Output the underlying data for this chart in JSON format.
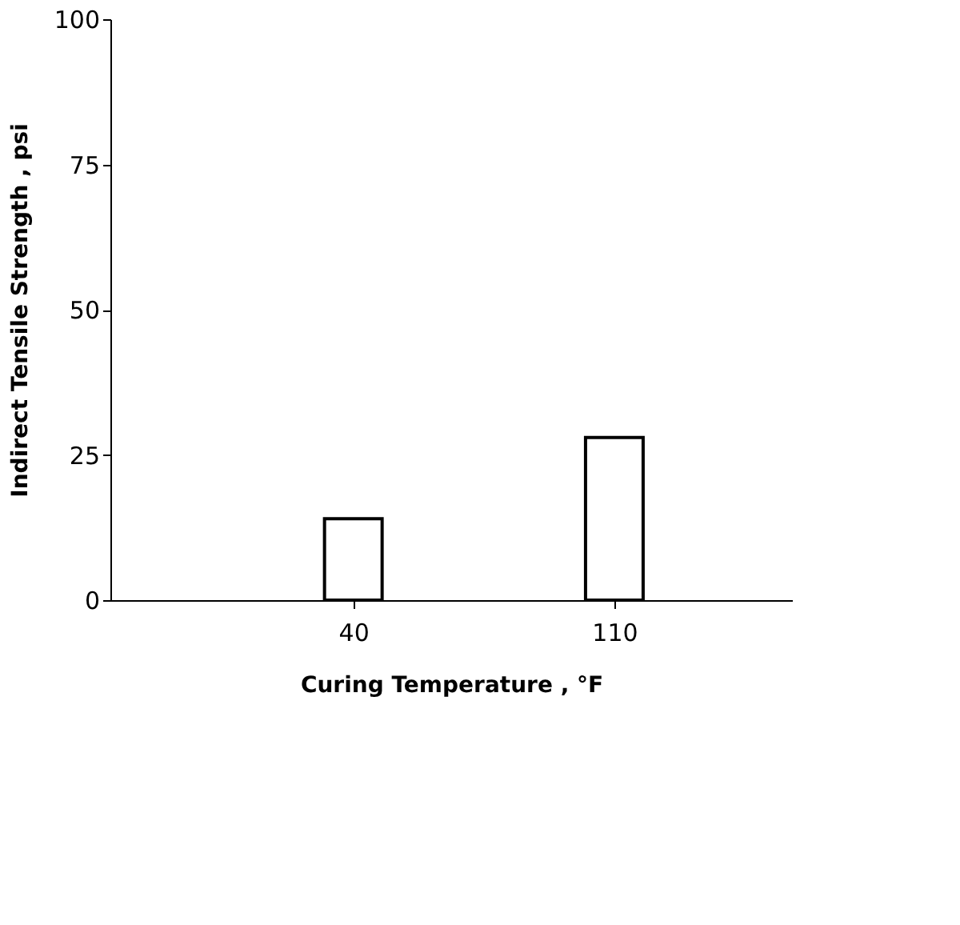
{
  "chart_data": {
    "type": "bar",
    "xlabel": "Curing Temperature , °F",
    "ylabel": "Indirect Tensile Strength , psi",
    "categories": [
      "40",
      "110"
    ],
    "values": [
      14,
      28
    ],
    "color": "#ffffff",
    "ylim": [
      0,
      100
    ],
    "yticks": [
      0,
      25,
      50,
      75,
      100
    ],
    "grid": false
  }
}
